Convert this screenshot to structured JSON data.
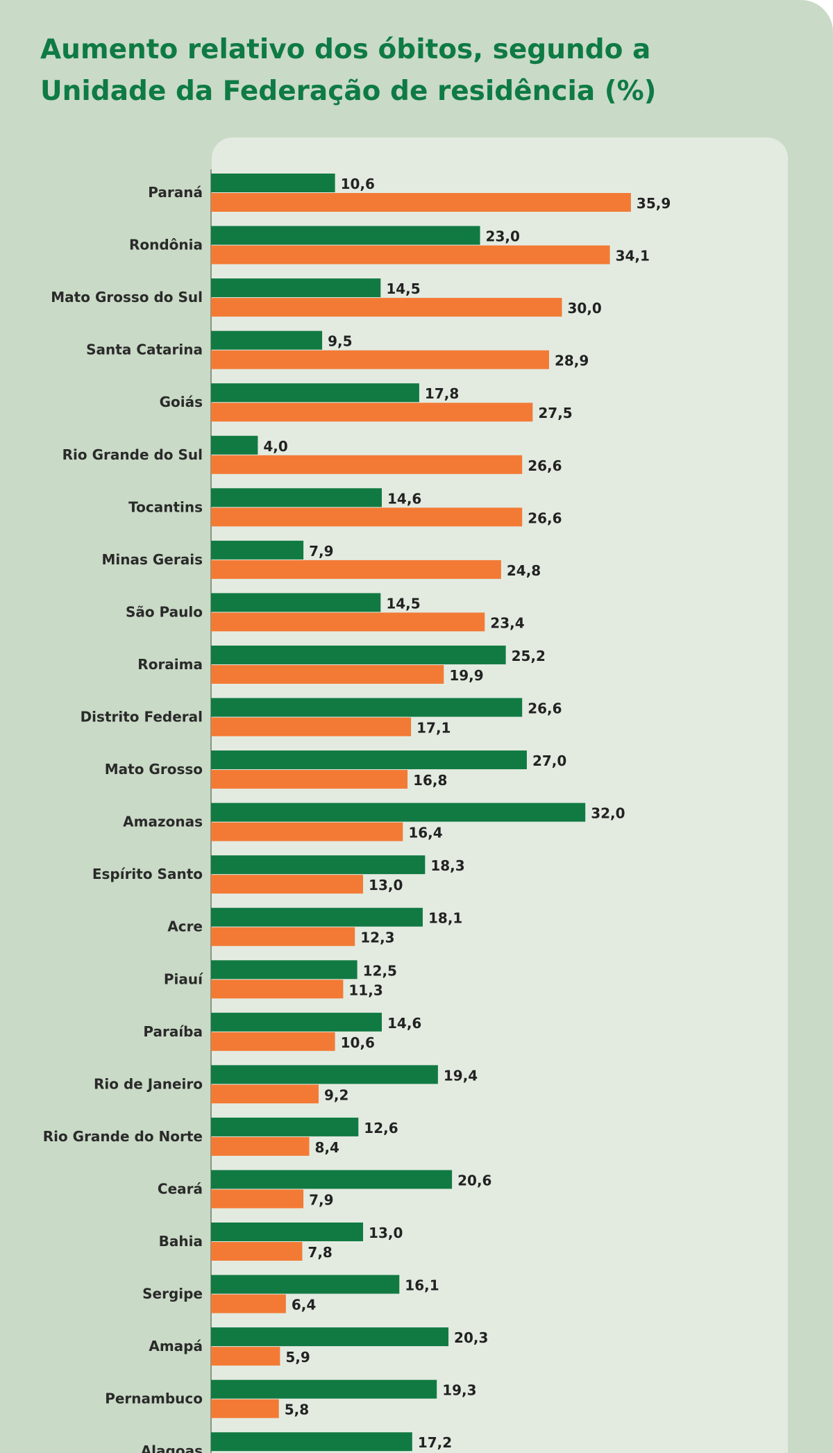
{
  "chart_data": {
    "type": "bar",
    "orientation": "horizontal",
    "title_lines": [
      "Aumento relativo dos óbitos, segundo a",
      "Unidade da Federação de residência (%)"
    ],
    "xlabel": "",
    "ylabel": "",
    "xlim": [
      0,
      36
    ],
    "grid": false,
    "legend": "none",
    "categories": [
      "Paraná",
      "Rondônia",
      "Mato Grosso do Sul",
      "Santa Catarina",
      "Goiás",
      "Rio Grande do Sul",
      "Tocantins",
      "Minas Gerais",
      "São Paulo",
      "Roraima",
      "Distrito Federal",
      "Mato Grosso",
      "Amazonas",
      "Espírito Santo",
      "Acre",
      "Piauí",
      "Paraíba",
      "Rio de Janeiro",
      "Rio Grande do Norte",
      "Ceará",
      "Bahia",
      "Sergipe",
      "Amapá",
      "Pernambuco",
      "Alagoas"
    ],
    "series": [
      {
        "color": "#117a42",
        "values": [
          10.6,
          23.0,
          14.5,
          9.5,
          17.8,
          4.0,
          14.6,
          7.9,
          14.5,
          25.2,
          26.6,
          27.0,
          32.0,
          18.3,
          18.1,
          12.5,
          14.6,
          19.4,
          12.6,
          20.6,
          13.0,
          16.1,
          20.3,
          19.3,
          17.2
        ],
        "labels": [
          "10,6",
          "23,0",
          "14,5",
          "9,5",
          "17,8",
          "4,0",
          "14,6",
          "7,9",
          "14,5",
          "25,2",
          "26,6",
          "27,0",
          "32,0",
          "18,3",
          "18,1",
          "12,5",
          "14,6",
          "19,4",
          "12,6",
          "20,6",
          "13,0",
          "16,1",
          "20,3",
          "19,3",
          "17,2"
        ]
      },
      {
        "color": "#f37a35",
        "values": [
          35.9,
          34.1,
          30.0,
          28.9,
          27.5,
          26.6,
          26.6,
          24.8,
          23.4,
          19.9,
          17.1,
          16.8,
          16.4,
          13.0,
          12.3,
          11.3,
          10.6,
          9.2,
          8.4,
          7.9,
          7.8,
          6.4,
          5.9,
          5.8,
          null
        ],
        "labels": [
          "35,9",
          "34,1",
          "30,0",
          "28,9",
          "27,5",
          "26,6",
          "26,6",
          "24,8",
          "23,4",
          "19,9",
          "17,1",
          "16,8",
          "16,4",
          "13,0",
          "12,3",
          "11,3",
          "10,6",
          "9,2",
          "8,4",
          "7,9",
          "7,8",
          "6,4",
          "5,9",
          "5,8",
          ""
        ]
      }
    ]
  }
}
